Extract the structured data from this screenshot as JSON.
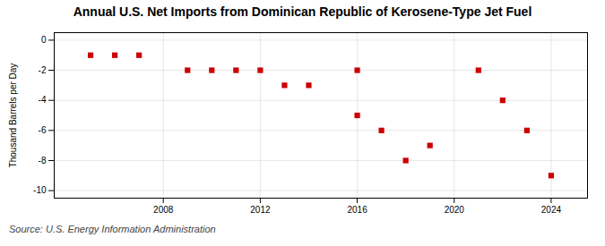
{
  "chart_data": {
    "type": "scatter",
    "title": "Annual U.S. Net Imports from Dominican Republic of Kerosene-Type Jet Fuel",
    "ylabel": "Thousand Barrels per Day",
    "annotations": [
      "Source: U.S. Energy Information Administration"
    ],
    "x": [
      2005,
      2006,
      2007,
      2009,
      2010,
      2011,
      2012,
      2013,
      2014,
      2016,
      2016,
      2017,
      2018,
      2019,
      2021,
      2022,
      2023,
      2024
    ],
    "values": [
      -1.0,
      -1.0,
      -1.0,
      -2.0,
      -2.0,
      -2.0,
      -2.0,
      -3.0,
      -3.0,
      -2.0,
      -5.0,
      -6.0,
      -8.0,
      -7.0,
      -2.0,
      -4.0,
      -6.0,
      -9.0
    ],
    "color": "#cc0000",
    "marker": "square",
    "xlim": [
      2003.5,
      2025.5
    ],
    "ylim": [
      -10.5,
      0.5
    ],
    "xticks": [
      2008,
      2012,
      2016,
      2020,
      2024
    ],
    "yticks": [
      0,
      -2,
      -4,
      -6,
      -8,
      -10
    ],
    "grid": true
  }
}
